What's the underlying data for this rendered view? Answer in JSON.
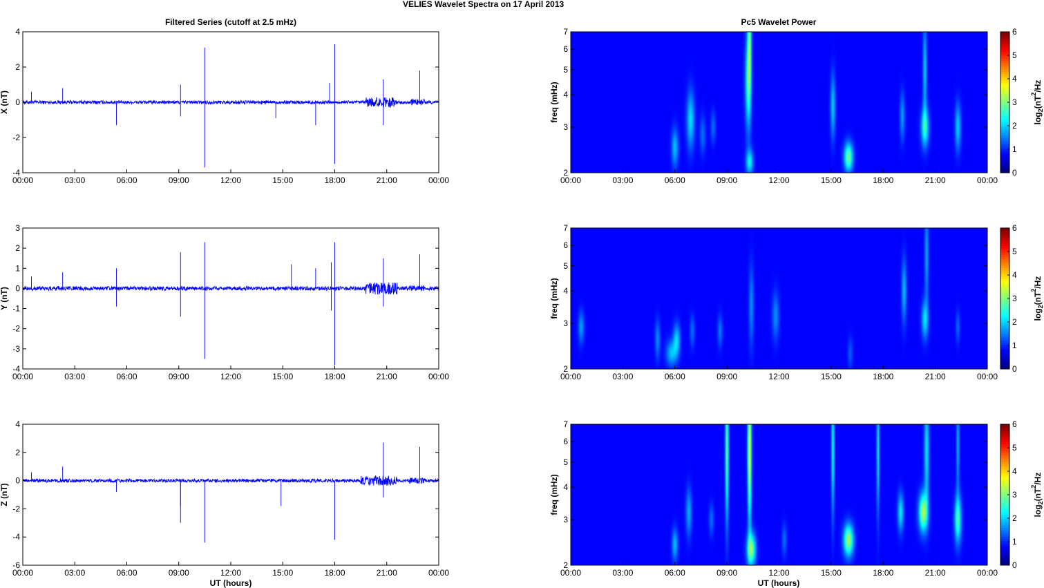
{
  "figure": {
    "title": "VELIES Wavelet Spectra on 17 April      2013",
    "left_title": "Filtered Series (cutoff at 2.5 mHz)",
    "right_title": "Pc5 Wavelet Power",
    "x_ticks": [
      "00:00",
      "03:00",
      "06:00",
      "09:00",
      "12:00",
      "15:00",
      "18:00",
      "21:00",
      "00:00"
    ],
    "xlabel": "UT (hours)",
    "colorbar_label_parts": [
      "log",
      "2",
      "(nT",
      "2",
      "/Hz"
    ],
    "colorbar_ticks": [
      "0",
      "1",
      "2",
      "3",
      "4",
      "5",
      "6"
    ],
    "freq_label": "freq (mHz)",
    "freq_ticks": [
      "2",
      "3",
      "4",
      "5",
      "6",
      "7"
    ],
    "colors": {
      "trace": "#0000ff",
      "axis": "#000000",
      "background": "#ffffff",
      "cmap": "jet"
    }
  },
  "chart_data": [
    {
      "type": "line",
      "name": "series-x",
      "title": "Filtered Series (cutoff at 2.5 mHz)",
      "ylabel": "X (nT)",
      "y_ticks": [
        "4",
        "2",
        "0",
        "-2",
        "-4"
      ],
      "xlim": [
        0,
        24
      ],
      "ylim": [
        -4,
        4
      ],
      "noise_amplitude": 0.1,
      "late_noise": [
        {
          "t0": 19.8,
          "t1": 21.6,
          "amp": 0.3
        },
        {
          "t0": 22.3,
          "t1": 23.2,
          "amp": 0.18
        }
      ],
      "spikes": [
        {
          "t": 0.5,
          "v": 0.6
        },
        {
          "t": 2.3,
          "v": 0.8
        },
        {
          "t": 5.4,
          "v": -1.3
        },
        {
          "t": 9.1,
          "v": 1.0
        },
        {
          "t": 9.1,
          "v": -0.8
        },
        {
          "t": 10.5,
          "v": 3.1
        },
        {
          "t": 10.5,
          "v": -3.7
        },
        {
          "t": 14.6,
          "v": -0.9
        },
        {
          "t": 16.9,
          "v": -1.3
        },
        {
          "t": 17.7,
          "v": 1.1
        },
        {
          "t": 18.0,
          "v": 3.3
        },
        {
          "t": 18.0,
          "v": -3.5
        },
        {
          "t": 20.8,
          "v": 1.3
        },
        {
          "t": 20.8,
          "v": -1.3
        },
        {
          "t": 22.9,
          "v": 1.8
        }
      ]
    },
    {
      "type": "line",
      "name": "series-y",
      "ylabel": "Y (nT)",
      "y_ticks": [
        "3",
        "2",
        "1",
        "0",
        "-1",
        "-2",
        "-3",
        "-4"
      ],
      "xlim": [
        0,
        24
      ],
      "ylim": [
        -4,
        3
      ],
      "noise_amplitude": 0.1,
      "late_noise": [
        {
          "t0": 19.8,
          "t1": 21.6,
          "amp": 0.3
        },
        {
          "t0": 22.3,
          "t1": 23.2,
          "amp": 0.15
        }
      ],
      "spikes": [
        {
          "t": 0.5,
          "v": 0.6
        },
        {
          "t": 2.3,
          "v": 0.8
        },
        {
          "t": 5.4,
          "v": 1.0
        },
        {
          "t": 5.4,
          "v": -0.9
        },
        {
          "t": 9.1,
          "v": 1.8
        },
        {
          "t": 9.1,
          "v": -1.4
        },
        {
          "t": 10.5,
          "v": 2.3
        },
        {
          "t": 10.5,
          "v": -3.5
        },
        {
          "t": 15.5,
          "v": 1.2
        },
        {
          "t": 16.9,
          "v": 1.0
        },
        {
          "t": 17.8,
          "v": 1.3
        },
        {
          "t": 17.8,
          "v": -1.1
        },
        {
          "t": 18.0,
          "v": 2.3
        },
        {
          "t": 18.0,
          "v": -3.8
        },
        {
          "t": 20.8,
          "v": 1.5
        },
        {
          "t": 20.8,
          "v": -0.9
        },
        {
          "t": 22.9,
          "v": 1.7
        }
      ]
    },
    {
      "type": "line",
      "name": "series-z",
      "ylabel": "Z (nT)",
      "y_ticks": [
        "4",
        "2",
        "0",
        "-2",
        "-4",
        "-6"
      ],
      "xlim": [
        0,
        24
      ],
      "ylim": [
        -6,
        4
      ],
      "noise_amplitude": 0.12,
      "late_noise": [
        {
          "t0": 19.5,
          "t1": 21.6,
          "amp": 0.35
        },
        {
          "t0": 22.3,
          "t1": 23.2,
          "amp": 0.2
        }
      ],
      "spikes": [
        {
          "t": 0.5,
          "v": 0.6
        },
        {
          "t": 2.3,
          "v": 1.0
        },
        {
          "t": 5.4,
          "v": -0.8
        },
        {
          "t": 9.1,
          "v": -1.8
        },
        {
          "t": 9.1,
          "v": -3.0
        },
        {
          "t": 10.5,
          "v": -4.4
        },
        {
          "t": 14.9,
          "v": -1.8
        },
        {
          "t": 18.0,
          "v": -4.2
        },
        {
          "t": 20.8,
          "v": 2.7
        },
        {
          "t": 20.8,
          "v": -1.2
        },
        {
          "t": 22.9,
          "v": 2.4
        }
      ]
    },
    {
      "type": "heatmap",
      "name": "power-x",
      "title": "Pc5 Wavelet Power",
      "xlabel": "",
      "ylabel": "freq (mHz)",
      "xlim": [
        0,
        24
      ],
      "ylim": [
        2,
        7
      ],
      "y_scale": "log",
      "zlim": [
        0,
        6
      ],
      "colormap": "jet",
      "blobs": [
        {
          "t": 6.0,
          "f": 2.5,
          "wt": 0.14,
          "wf": 0.12,
          "p": 1.2
        },
        {
          "t": 6.9,
          "f": 3.2,
          "wt": 0.16,
          "wf": 0.18,
          "p": 1.4
        },
        {
          "t": 7.6,
          "f": 2.8,
          "wt": 0.12,
          "wf": 0.12,
          "p": 0.7
        },
        {
          "t": 8.2,
          "f": 3.0,
          "wt": 0.1,
          "wf": 0.1,
          "p": 0.7
        },
        {
          "t": 10.3,
          "f": 2.2,
          "wt": 0.15,
          "wf": 0.08,
          "p": 1.5
        },
        {
          "t": 10.2,
          "f": 4.5,
          "wt": 0.12,
          "wf": 0.3,
          "p": 1.6
        },
        {
          "t": 10.3,
          "f": 6.5,
          "wt": 0.08,
          "wf": 0.4,
          "p": 2.0
        },
        {
          "t": 15.1,
          "f": 3.6,
          "wt": 0.1,
          "wf": 0.2,
          "p": 1.3
        },
        {
          "t": 16.0,
          "f": 2.3,
          "wt": 0.18,
          "wf": 0.09,
          "p": 2.3
        },
        {
          "t": 19.1,
          "f": 3.3,
          "wt": 0.1,
          "wf": 0.15,
          "p": 1.0
        },
        {
          "t": 20.4,
          "f": 3.0,
          "wt": 0.16,
          "wf": 0.12,
          "p": 1.8
        },
        {
          "t": 20.4,
          "f": 5.0,
          "wt": 0.08,
          "wf": 0.3,
          "p": 1.3
        },
        {
          "t": 22.3,
          "f": 3.0,
          "wt": 0.12,
          "wf": 0.15,
          "p": 1.3
        }
      ]
    },
    {
      "type": "heatmap",
      "name": "power-y",
      "ylabel": "freq (mHz)",
      "xlim": [
        0,
        24
      ],
      "ylim": [
        2,
        7
      ],
      "y_scale": "log",
      "zlim": [
        0,
        6
      ],
      "colormap": "jet",
      "blobs": [
        {
          "t": 0.6,
          "f": 2.9,
          "wt": 0.12,
          "wf": 0.1,
          "p": 1.0
        },
        {
          "t": 5.0,
          "f": 2.6,
          "wt": 0.1,
          "wf": 0.12,
          "p": 0.9
        },
        {
          "t": 5.8,
          "f": 2.3,
          "wt": 0.22,
          "wf": 0.08,
          "p": 1.2
        },
        {
          "t": 6.1,
          "f": 2.6,
          "wt": 0.14,
          "wf": 0.1,
          "p": 1.3
        },
        {
          "t": 7.0,
          "f": 2.8,
          "wt": 0.1,
          "wf": 0.1,
          "p": 0.7
        },
        {
          "t": 8.6,
          "f": 2.8,
          "wt": 0.1,
          "wf": 0.1,
          "p": 0.8
        },
        {
          "t": 10.4,
          "f": 3.5,
          "wt": 0.1,
          "wf": 0.25,
          "p": 0.9
        },
        {
          "t": 11.8,
          "f": 3.2,
          "wt": 0.14,
          "wf": 0.15,
          "p": 0.9
        },
        {
          "t": 16.1,
          "f": 2.3,
          "wt": 0.1,
          "wf": 0.1,
          "p": 0.6
        },
        {
          "t": 19.2,
          "f": 4.0,
          "wt": 0.1,
          "wf": 0.2,
          "p": 1.2
        },
        {
          "t": 20.4,
          "f": 3.1,
          "wt": 0.14,
          "wf": 0.12,
          "p": 1.4
        },
        {
          "t": 20.5,
          "f": 5.5,
          "wt": 0.08,
          "wf": 0.3,
          "p": 1.1
        },
        {
          "t": 22.3,
          "f": 2.9,
          "wt": 0.08,
          "wf": 0.1,
          "p": 0.7
        }
      ]
    },
    {
      "type": "heatmap",
      "name": "power-z",
      "ylabel": "freq (mHz)",
      "xlabel": "UT (hours)",
      "xlim": [
        0,
        24
      ],
      "ylim": [
        2,
        7
      ],
      "y_scale": "log",
      "zlim": [
        0,
        6
      ],
      "colormap": "jet",
      "blobs": [
        {
          "t": 6.0,
          "f": 2.4,
          "wt": 0.12,
          "wf": 0.1,
          "p": 1.2
        },
        {
          "t": 6.8,
          "f": 3.2,
          "wt": 0.12,
          "wf": 0.15,
          "p": 1.1
        },
        {
          "t": 8.1,
          "f": 3.0,
          "wt": 0.1,
          "wf": 0.1,
          "p": 0.7
        },
        {
          "t": 9.0,
          "f": 5.5,
          "wt": 0.07,
          "wf": 0.45,
          "p": 2.2
        },
        {
          "t": 10.3,
          "f": 5.5,
          "wt": 0.08,
          "wf": 0.45,
          "p": 3.0
        },
        {
          "t": 10.4,
          "f": 2.3,
          "wt": 0.18,
          "wf": 0.1,
          "p": 2.4
        },
        {
          "t": 12.3,
          "f": 2.5,
          "wt": 0.1,
          "wf": 0.1,
          "p": 0.7
        },
        {
          "t": 15.1,
          "f": 5.5,
          "wt": 0.06,
          "wf": 0.4,
          "p": 1.8
        },
        {
          "t": 16.0,
          "f": 2.5,
          "wt": 0.2,
          "wf": 0.1,
          "p": 2.6
        },
        {
          "t": 17.7,
          "f": 5.5,
          "wt": 0.06,
          "wf": 0.4,
          "p": 1.5
        },
        {
          "t": 19.0,
          "f": 3.2,
          "wt": 0.12,
          "wf": 0.12,
          "p": 1.5
        },
        {
          "t": 20.3,
          "f": 3.2,
          "wt": 0.18,
          "wf": 0.12,
          "p": 2.6
        },
        {
          "t": 20.5,
          "f": 5.5,
          "wt": 0.1,
          "wf": 0.35,
          "p": 1.5
        },
        {
          "t": 22.3,
          "f": 3.0,
          "wt": 0.14,
          "wf": 0.15,
          "p": 2.0
        },
        {
          "t": 22.3,
          "f": 5.8,
          "wt": 0.06,
          "wf": 0.3,
          "p": 1.2
        }
      ]
    }
  ]
}
